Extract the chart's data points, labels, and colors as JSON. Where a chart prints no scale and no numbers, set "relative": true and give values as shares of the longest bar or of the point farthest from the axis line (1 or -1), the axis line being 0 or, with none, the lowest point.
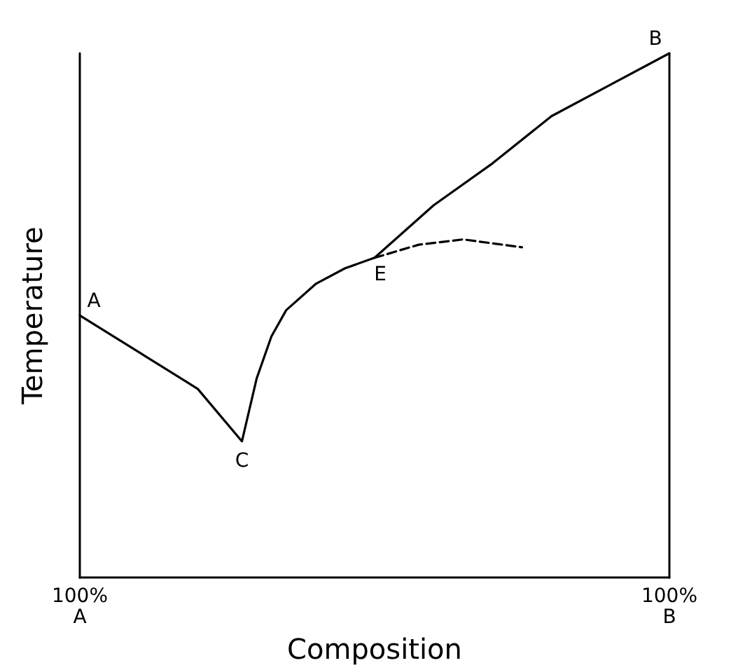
{
  "chart_data": {
    "type": "line",
    "relative": true,
    "xlabel": "Composition",
    "ylabel": "Temperature",
    "categories": [
      "100%\nA",
      null,
      null,
      null,
      null,
      null,
      null,
      null,
      null,
      null,
      null,
      null,
      null,
      null,
      null,
      null,
      null,
      null,
      null,
      null,
      null,
      null,
      null,
      null,
      null,
      null,
      null,
      null,
      null,
      null,
      null,
      null,
      null,
      null,
      null,
      null,
      null,
      null,
      null,
      null,
      "100%\nB"
    ],
    "marker": "none",
    "grid": false,
    "series": [
      {
        "color": "#000000",
        "values": [
          0.5,
          null,
          null,
          null,
          0.43,
          null,
          null,
          null,
          0.36,
          null,
          null,
          0.26,
          0.38,
          0.46,
          0.51,
          null,
          0.56,
          null,
          0.59,
          null,
          0.61,
          null,
          null,
          null,
          0.71,
          null,
          null,
          null,
          0.79,
          null,
          null,
          null,
          0.88,
          null,
          null,
          null,
          0.94,
          null,
          null,
          null,
          1
        ]
      },
      {
        "color": "#000000",
        "line_style": "dashed",
        "values": [
          null,
          null,
          null,
          null,
          null,
          null,
          null,
          null,
          null,
          null,
          null,
          null,
          null,
          null,
          null,
          null,
          null,
          null,
          null,
          null,
          0.61,
          null,
          null,
          0.635,
          null,
          null,
          0.645,
          null,
          null,
          null,
          0.63,
          null,
          null,
          null,
          null,
          null,
          null,
          null,
          null,
          null,
          null
        ]
      }
    ],
    "annotations": [
      {
        "text": "A",
        "y": 0.5
      },
      {
        "text": "C",
        "y": 0.26
      },
      {
        "text": "E",
        "y": 0.61
      },
      {
        "text": "B",
        "y": 1
      }
    ]
  }
}
